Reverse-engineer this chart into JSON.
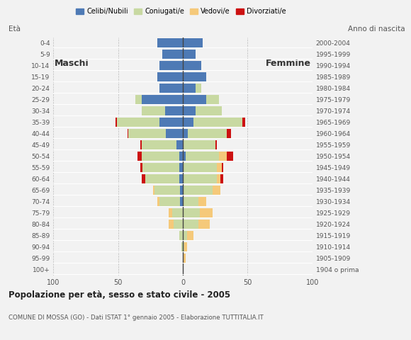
{
  "age_groups": [
    "100+",
    "95-99",
    "90-94",
    "85-89",
    "80-84",
    "75-79",
    "70-74",
    "65-69",
    "60-64",
    "55-59",
    "50-54",
    "45-49",
    "40-44",
    "35-39",
    "30-34",
    "25-29",
    "20-24",
    "15-19",
    "10-14",
    "5-9",
    "0-4"
  ],
  "birth_years": [
    "1904 o prima",
    "1905-1909",
    "1910-1914",
    "1915-1919",
    "1920-1924",
    "1925-1929",
    "1930-1934",
    "1935-1939",
    "1940-1944",
    "1945-1949",
    "1950-1954",
    "1955-1959",
    "1960-1964",
    "1965-1969",
    "1970-1974",
    "1975-1979",
    "1980-1984",
    "1985-1989",
    "1990-1994",
    "1995-1999",
    "2000-2004"
  ],
  "colors": {
    "celibe": "#4e7ab5",
    "coniugato": "#c8d9a2",
    "vedovo": "#f5c97a",
    "divorziato": "#cc1111"
  },
  "males": {
    "celibe": [
      0,
      0,
      0,
      0,
      0,
      0,
      2,
      2,
      3,
      3,
      3,
      5,
      13,
      18,
      14,
      32,
      18,
      20,
      18,
      16,
      20
    ],
    "coniugato": [
      0,
      0,
      1,
      3,
      7,
      8,
      16,
      20,
      26,
      28,
      29,
      27,
      29,
      33,
      18,
      5,
      0,
      0,
      0,
      0,
      0
    ],
    "vedovo": [
      0,
      0,
      0,
      0,
      4,
      3,
      2,
      1,
      0,
      0,
      0,
      0,
      0,
      0,
      0,
      0,
      0,
      0,
      0,
      0,
      0
    ],
    "divorziato": [
      0,
      0,
      0,
      0,
      0,
      0,
      0,
      0,
      3,
      2,
      3,
      1,
      1,
      1,
      0,
      0,
      0,
      0,
      0,
      0,
      0
    ]
  },
  "females": {
    "celibe": [
      0,
      0,
      0,
      0,
      0,
      0,
      0,
      0,
      0,
      0,
      2,
      0,
      4,
      8,
      10,
      18,
      10,
      18,
      14,
      10,
      15
    ],
    "coniugato": [
      0,
      0,
      1,
      3,
      12,
      13,
      12,
      23,
      26,
      26,
      26,
      25,
      30,
      38,
      20,
      10,
      4,
      0,
      0,
      0,
      0
    ],
    "vedovo": [
      0,
      2,
      2,
      5,
      9,
      10,
      6,
      6,
      3,
      4,
      6,
      0,
      0,
      0,
      0,
      0,
      0,
      0,
      0,
      0,
      0
    ],
    "divorziato": [
      0,
      0,
      0,
      0,
      0,
      0,
      0,
      0,
      2,
      1,
      5,
      1,
      3,
      2,
      0,
      0,
      0,
      0,
      0,
      0,
      0
    ]
  },
  "title": "Popolazione per età, sesso e stato civile - 2005",
  "subtitle": "COMUNE DI MOSSA (GO) - Dati ISTAT 1° gennaio 2005 - Elaborazione TUTTITALIA.IT",
  "label_maschi": "Maschi",
  "label_femmine": "Femmine",
  "label_eta": "Età",
  "label_anno": "Anno di nascita",
  "xlim": 100,
  "bg_color": "#f2f2f2",
  "legend_labels": [
    "Celibi/Nubili",
    "Coniugati/e",
    "Vedovi/e",
    "Divorziati/e"
  ],
  "gridline_color": "#bbbbbb",
  "bar_height": 0.8
}
